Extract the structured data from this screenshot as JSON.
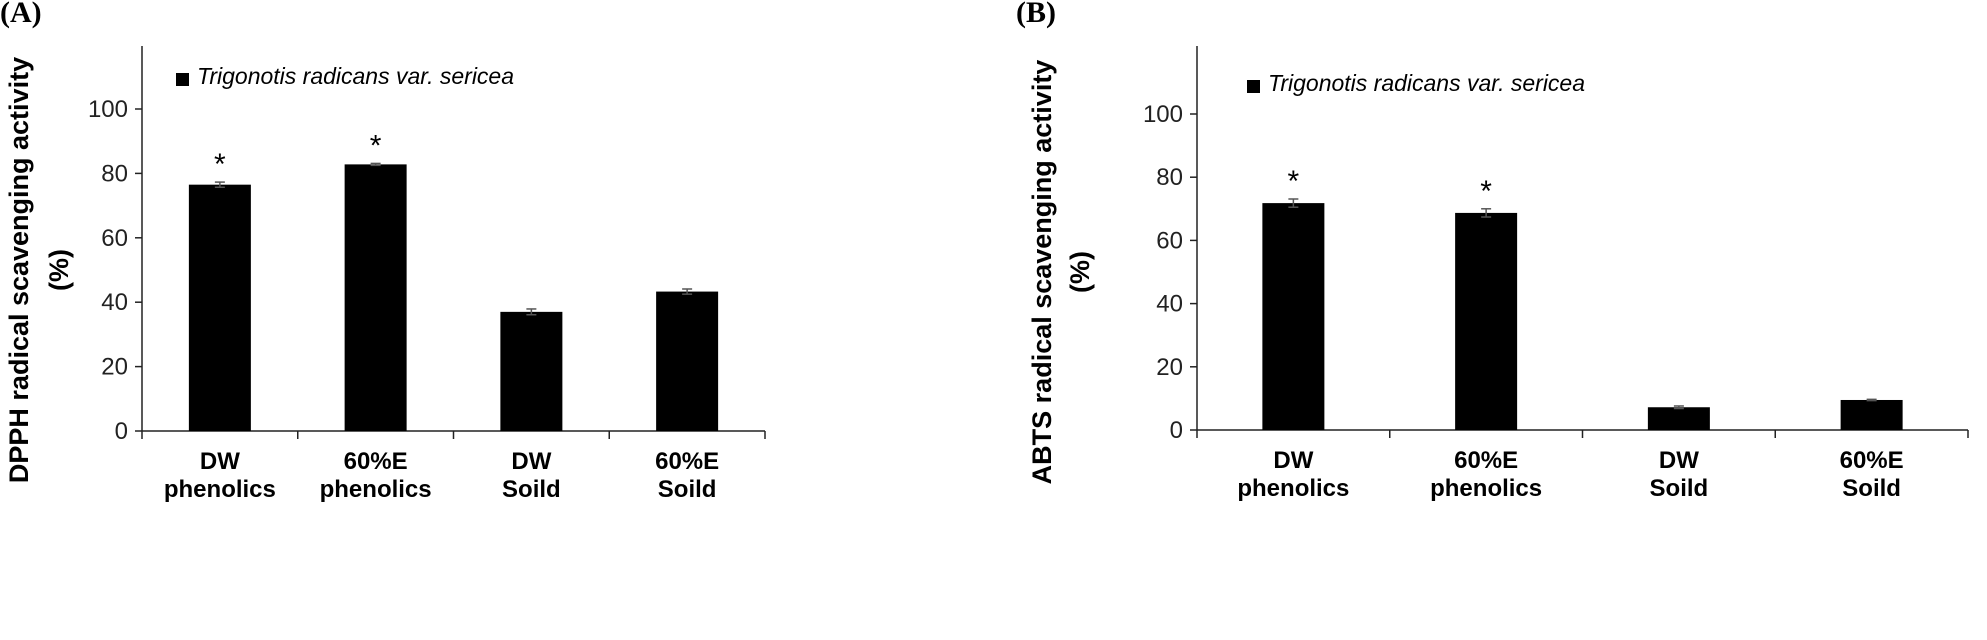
{
  "chart_data": [
    {
      "type": "bar",
      "panel_label": "(A)",
      "categories": [
        [
          "DW",
          "phenolics"
        ],
        [
          "60%E",
          "phenolics"
        ],
        [
          "DW",
          "Soild"
        ],
        [
          "60%E",
          "Soild"
        ]
      ],
      "series": [
        {
          "name": "Trigonotis radicans var. sericea",
          "values": [
            76.5,
            82.8,
            37.0,
            43.3
          ],
          "errors": [
            0.8,
            0.3,
            0.9,
            0.8
          ],
          "color": "#000000"
        }
      ],
      "annotations": [
        "*",
        "*",
        "",
        ""
      ],
      "ylabel": [
        "DPPH radical scavenging activity",
        "(%)"
      ],
      "ylim": [
        0,
        100
      ],
      "yticks": [
        0,
        20,
        40,
        60,
        80,
        100
      ],
      "legend_position": "top-left",
      "grid": false
    },
    {
      "type": "bar",
      "panel_label": "(B)",
      "categories": [
        [
          "DW",
          "phenolics"
        ],
        [
          "60%E",
          "phenolics"
        ],
        [
          "DW",
          "Soild"
        ],
        [
          "60%E",
          "Soild"
        ]
      ],
      "series": [
        {
          "name": "Trigonotis radicans var. sericea",
          "values": [
            71.8,
            68.7,
            7.2,
            9.5
          ],
          "errors": [
            1.3,
            1.3,
            0.4,
            0.2
          ],
          "color": "#000000"
        }
      ],
      "annotations": [
        "*",
        "*",
        "",
        ""
      ],
      "ylabel": [
        "ABTS radical scavenging activity",
        "(%)"
      ],
      "ylim": [
        0,
        100
      ],
      "yticks": [
        0,
        20,
        40,
        60,
        80,
        100
      ],
      "legend_position": "top-left",
      "grid": false
    }
  ]
}
